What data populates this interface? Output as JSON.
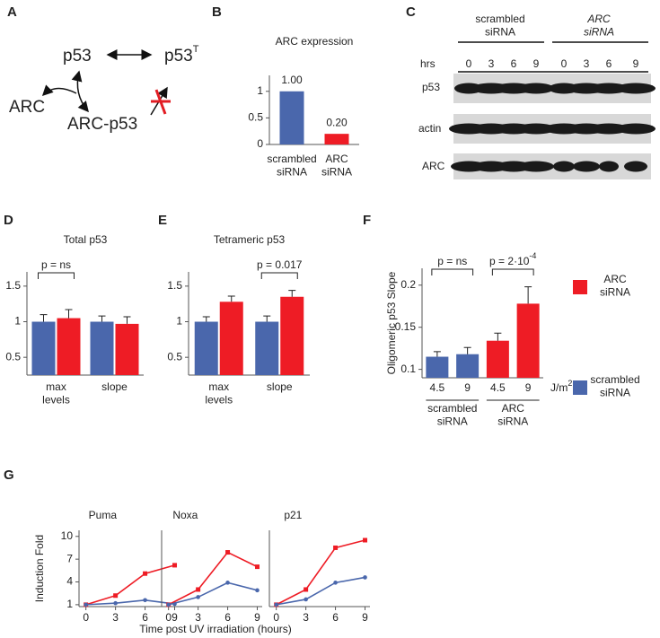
{
  "panel_labels": [
    "A",
    "B",
    "C",
    "D",
    "E",
    "F",
    "G"
  ],
  "diagram": {
    "nodes": [
      {
        "label": "p53"
      },
      {
        "label": "p53",
        "superscript": "T"
      },
      {
        "label": "ARC"
      },
      {
        "label": "ARC-p53"
      }
    ]
  },
  "blot": {
    "groups": [
      "scrambled\nsiRNA",
      "ARC\nsiRNA"
    ],
    "time_label": "hrs",
    "times": [
      "0",
      "3",
      "6",
      "9",
      "0",
      "3",
      "6",
      "9"
    ],
    "rows": [
      "p53",
      "actin",
      "ARC"
    ]
  },
  "legend": [
    {
      "name": "ARC\nsiRNA",
      "color": "#ee1c25"
    },
    {
      "name": "scrambled\nsiRNA",
      "color": "#4a67ac"
    }
  ],
  "chart_data": [
    {
      "type": "bar",
      "title": "ARC expression",
      "categories": [
        "scrambled\nsiRNA",
        "ARC\nsiRNA"
      ],
      "series": [
        {
          "values": [
            1,
            0.2
          ],
          "value_labels": [
            "1.00",
            "0.20"
          ],
          "colors": [
            "#4a67ac",
            "#ee1c25"
          ]
        }
      ],
      "ylim": [
        0,
        1.3
      ],
      "yticks": [
        0,
        0.5,
        1
      ]
    },
    {
      "type": "bar",
      "title": "Total p53",
      "categories": [
        "max\nlevels",
        "slope"
      ],
      "series": [
        {
          "color": "#4a67ac",
          "values": [
            1,
            1
          ],
          "errors": [
            0.1,
            0.08
          ]
        },
        {
          "color": "#ee1c25",
          "values": [
            1.05,
            0.97
          ],
          "errors": [
            0.12,
            0.1
          ]
        }
      ],
      "ylim": [
        0.25,
        1.7
      ],
      "yticks": [
        0.5,
        1,
        1.5
      ],
      "annotations": [
        {
          "text": "p = ns"
        }
      ]
    },
    {
      "type": "bar",
      "title": "Tetrameric p53",
      "categories": [
        "max\nlevels",
        "slope"
      ],
      "series": [
        {
          "color": "#4a67ac",
          "values": [
            1,
            1
          ],
          "errors": [
            0.07,
            0.08
          ]
        },
        {
          "color": "#ee1c25",
          "values": [
            1.28,
            1.35
          ],
          "errors": [
            0.08,
            0.09
          ]
        }
      ],
      "ylim": [
        0.25,
        1.7
      ],
      "yticks": [
        0.5,
        1,
        1.5
      ],
      "annotations": [
        {
          "text": "p = 0.017"
        }
      ]
    },
    {
      "type": "bar",
      "ylabel": "Oligomeric p53 Slope",
      "categories": [
        "4.5",
        "9",
        "4.5",
        "9"
      ],
      "series": [
        {
          "values": [
            0.115,
            0.118,
            0.134,
            0.178
          ],
          "errors": [
            0.006,
            0.008,
            0.009,
            0.02
          ],
          "colors": [
            "#4a67ac",
            "#4a67ac",
            "#ee1c25",
            "#ee1c25"
          ]
        }
      ],
      "ylim": [
        0.09,
        0.22
      ],
      "yticks": [
        0.1,
        0.15,
        0.2
      ],
      "x_unit": {
        "text": "J/m",
        "superscript": "2"
      },
      "groups": [
        "scrambled\nsiRNA",
        "ARC\nsiRNA"
      ],
      "annotations": [
        {
          "text": "p = ns"
        },
        {
          "text": "p = 2·10",
          "superscript": "-4"
        }
      ]
    },
    {
      "type": "line",
      "title": "Puma",
      "ylabel": "Induction Fold",
      "x": [
        0,
        3,
        6,
        9
      ],
      "xlim": [
        -0.7,
        9.5
      ],
      "xticks": [
        0,
        3,
        6,
        9
      ],
      "ylim": [
        0.75,
        10.8
      ],
      "yticks": [
        1,
        4,
        7,
        10
      ],
      "series": [
        {
          "color": "#ee1c25",
          "marker": "square",
          "values": [
            1,
            2.2,
            5.1,
            6.2
          ]
        },
        {
          "color": "#4a67ac",
          "marker": "circle",
          "values": [
            1,
            1.2,
            1.6,
            1.1
          ]
        }
      ]
    },
    {
      "type": "line",
      "title": "Noxa",
      "xlabel": "Time post UV irradiation (hours)",
      "x": [
        0,
        3,
        6,
        9
      ],
      "xlim": [
        -0.7,
        9.5
      ],
      "xticks": [
        0,
        3,
        6,
        9
      ],
      "ylim": [
        0.75,
        10.8
      ],
      "series": [
        {
          "color": "#ee1c25",
          "marker": "square",
          "values": [
            1,
            3,
            7.9,
            6
          ]
        },
        {
          "color": "#4a67ac",
          "marker": "circle",
          "values": [
            1,
            2,
            3.9,
            2.9
          ]
        }
      ]
    },
    {
      "type": "line",
      "title": "p21",
      "x": [
        0,
        3,
        6,
        9
      ],
      "xlim": [
        -0.7,
        9.5
      ],
      "xticks": [
        0,
        3,
        6,
        9
      ],
      "ylim": [
        0.75,
        10.8
      ],
      "series": [
        {
          "color": "#ee1c25",
          "marker": "square",
          "values": [
            1,
            3,
            8.5,
            9.5
          ]
        },
        {
          "color": "#4a67ac",
          "marker": "circle",
          "values": [
            1,
            1.7,
            3.9,
            4.6
          ]
        }
      ]
    }
  ]
}
